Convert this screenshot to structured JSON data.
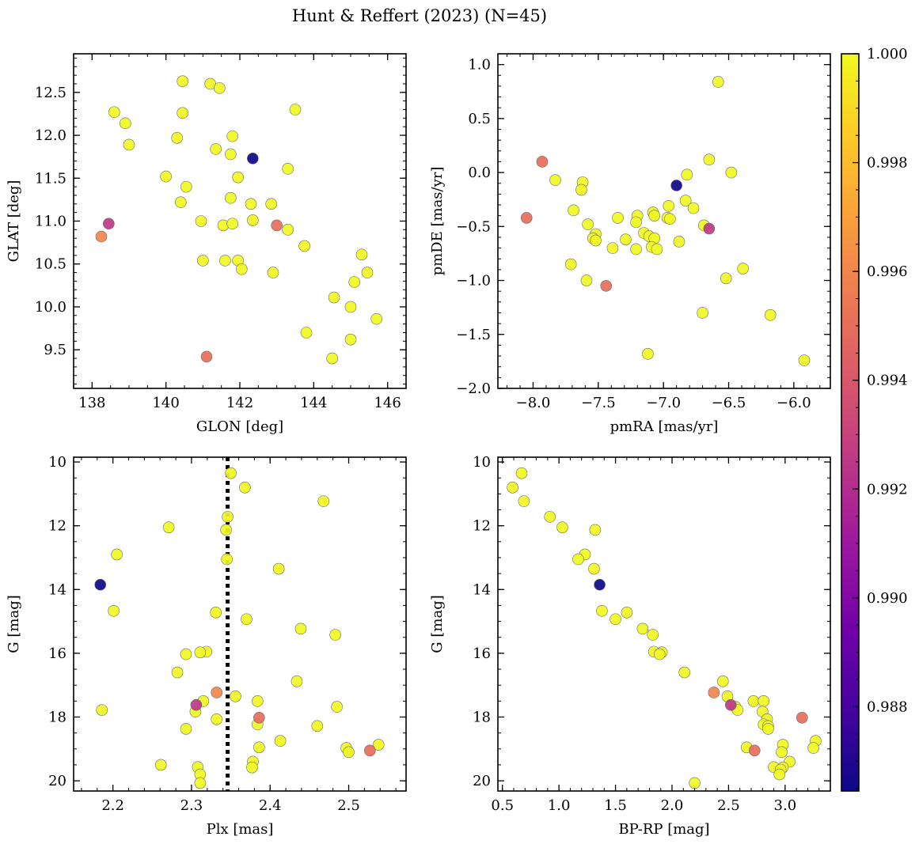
{
  "title": "Hunt & Reffert (2023) (N=45)",
  "colorbar": {
    "colormap": "plasma",
    "vmin": 0.98645,
    "vmax": 1.0,
    "ticks": [
      0.988,
      0.99,
      0.992,
      0.994,
      0.996,
      0.998,
      1.0
    ],
    "tick_labels": [
      "0.988",
      "0.990",
      "0.992",
      "0.994",
      "0.996",
      "0.998",
      "1.000"
    ]
  },
  "chart_data": [
    {
      "type": "scatter",
      "panel": "top-left",
      "xlabel": "GLON [deg]",
      "ylabel": "GLAT [deg]",
      "xlim": [
        137.5,
        146.5
      ],
      "ylim": [
        9.05,
        12.95
      ],
      "xticks": [
        138,
        140,
        142,
        144,
        146
      ],
      "xtick_labels": [
        "138",
        "140",
        "142",
        "144",
        "146"
      ],
      "xminor": 0.5,
      "yticks": [
        9.5,
        10.0,
        10.5,
        11.0,
        11.5,
        12.0,
        12.5
      ],
      "ytick_labels": [
        "9.5",
        "10.0",
        "10.5",
        "11.0",
        "11.5",
        "12.0",
        "12.5"
      ],
      "yminor": 0.1,
      "points": [
        {
          "x": 138.6,
          "y": 12.27,
          "c": 1.0
        },
        {
          "x": 138.9,
          "y": 12.14,
          "c": 1.0
        },
        {
          "x": 139.0,
          "y": 11.89,
          "c": 1.0
        },
        {
          "x": 140.45,
          "y": 12.63,
          "c": 1.0
        },
        {
          "x": 141.2,
          "y": 12.6,
          "c": 1.0
        },
        {
          "x": 141.45,
          "y": 12.55,
          "c": 1.0
        },
        {
          "x": 140.45,
          "y": 12.26,
          "c": 1.0
        },
        {
          "x": 143.5,
          "y": 12.3,
          "c": 1.0
        },
        {
          "x": 140.3,
          "y": 11.97,
          "c": 1.0
        },
        {
          "x": 141.35,
          "y": 11.84,
          "c": 1.0
        },
        {
          "x": 141.8,
          "y": 11.99,
          "c": 1.0
        },
        {
          "x": 141.75,
          "y": 11.78,
          "c": 1.0
        },
        {
          "x": 142.35,
          "y": 11.73,
          "c": 0.98645
        },
        {
          "x": 143.3,
          "y": 11.61,
          "c": 1.0
        },
        {
          "x": 140.0,
          "y": 11.52,
          "c": 1.0
        },
        {
          "x": 141.95,
          "y": 11.51,
          "c": 1.0
        },
        {
          "x": 140.55,
          "y": 11.4,
          "c": 1.0
        },
        {
          "x": 141.75,
          "y": 11.27,
          "c": 1.0
        },
        {
          "x": 140.4,
          "y": 11.22,
          "c": 1.0
        },
        {
          "x": 142.3,
          "y": 11.2,
          "c": 1.0
        },
        {
          "x": 142.85,
          "y": 11.2,
          "c": 1.0
        },
        {
          "x": 140.95,
          "y": 11.0,
          "c": 1.0
        },
        {
          "x": 142.35,
          "y": 11.01,
          "c": 1.0
        },
        {
          "x": 141.55,
          "y": 10.95,
          "c": 1.0
        },
        {
          "x": 141.8,
          "y": 10.97,
          "c": 1.0
        },
        {
          "x": 138.45,
          "y": 10.97,
          "c": 0.9925
        },
        {
          "x": 143.0,
          "y": 10.95,
          "c": 0.995
        },
        {
          "x": 143.3,
          "y": 10.9,
          "c": 1.0
        },
        {
          "x": 138.25,
          "y": 10.82,
          "c": 0.996
        },
        {
          "x": 143.75,
          "y": 10.71,
          "c": 1.0
        },
        {
          "x": 145.3,
          "y": 10.61,
          "c": 1.0
        },
        {
          "x": 141.0,
          "y": 10.54,
          "c": 1.0
        },
        {
          "x": 141.6,
          "y": 10.54,
          "c": 1.0
        },
        {
          "x": 141.95,
          "y": 10.54,
          "c": 1.0
        },
        {
          "x": 142.05,
          "y": 10.44,
          "c": 1.0
        },
        {
          "x": 142.9,
          "y": 10.4,
          "c": 1.0
        },
        {
          "x": 145.45,
          "y": 10.4,
          "c": 1.0
        },
        {
          "x": 145.1,
          "y": 10.29,
          "c": 1.0
        },
        {
          "x": 144.55,
          "y": 10.11,
          "c": 1.0
        },
        {
          "x": 145.0,
          "y": 10.0,
          "c": 1.0
        },
        {
          "x": 145.7,
          "y": 9.86,
          "c": 1.0
        },
        {
          "x": 143.8,
          "y": 9.7,
          "c": 1.0
        },
        {
          "x": 145.0,
          "y": 9.62,
          "c": 1.0
        },
        {
          "x": 141.1,
          "y": 9.42,
          "c": 0.995
        },
        {
          "x": 144.5,
          "y": 9.4,
          "c": 1.0
        }
      ]
    },
    {
      "type": "scatter",
      "panel": "top-right",
      "xlabel": "pmRA [mas/yr]",
      "ylabel": "pmDE [mas/yr]",
      "xlim": [
        -8.27,
        -5.72
      ],
      "ylim": [
        -2.0,
        1.1
      ],
      "xticks": [
        -8.0,
        -7.5,
        -7.0,
        -6.5,
        -6.0
      ],
      "xtick_labels": [
        "−8.0",
        "−7.5",
        "−7.0",
        "−6.5",
        "−6.0"
      ],
      "xminor": 0.1,
      "yticks": [
        -2.0,
        -1.5,
        -1.0,
        -0.5,
        0.0,
        0.5,
        1.0
      ],
      "ytick_labels": [
        "−2.0",
        "−1.5",
        "−1.0",
        "−0.5",
        "0.0",
        "0.5",
        "1.0"
      ],
      "yminor": 0.1,
      "points": [
        {
          "x": -6.58,
          "y": 0.84,
          "c": 1.0
        },
        {
          "x": -6.65,
          "y": 0.12,
          "c": 1.0
        },
        {
          "x": -7.93,
          "y": 0.1,
          "c": 0.995
        },
        {
          "x": -6.48,
          "y": 0.0,
          "c": 1.0
        },
        {
          "x": -6.82,
          "y": -0.02,
          "c": 1.0
        },
        {
          "x": -7.83,
          "y": -0.07,
          "c": 1.0
        },
        {
          "x": -7.62,
          "y": -0.09,
          "c": 1.0
        },
        {
          "x": -6.9,
          "y": -0.12,
          "c": 0.98645
        },
        {
          "x": -7.63,
          "y": -0.16,
          "c": 1.0
        },
        {
          "x": -6.83,
          "y": -0.26,
          "c": 1.0
        },
        {
          "x": -6.96,
          "y": -0.31,
          "c": 1.0
        },
        {
          "x": -6.77,
          "y": -0.33,
          "c": 1.0
        },
        {
          "x": -7.69,
          "y": -0.35,
          "c": 1.0
        },
        {
          "x": -7.08,
          "y": -0.37,
          "c": 1.0
        },
        {
          "x": -7.2,
          "y": -0.4,
          "c": 1.0
        },
        {
          "x": -7.07,
          "y": -0.4,
          "c": 1.0
        },
        {
          "x": -8.05,
          "y": -0.42,
          "c": 0.995
        },
        {
          "x": -7.35,
          "y": -0.42,
          "c": 1.0
        },
        {
          "x": -6.97,
          "y": -0.42,
          "c": 1.0
        },
        {
          "x": -6.95,
          "y": -0.43,
          "c": 1.0
        },
        {
          "x": -7.21,
          "y": -0.46,
          "c": 1.0
        },
        {
          "x": -7.58,
          "y": -0.48,
          "c": 1.0
        },
        {
          "x": -6.69,
          "y": -0.49,
          "c": 1.0
        },
        {
          "x": -6.65,
          "y": -0.52,
          "c": 0.9925
        },
        {
          "x": -7.15,
          "y": -0.56,
          "c": 1.0
        },
        {
          "x": -7.52,
          "y": -0.57,
          "c": 1.0
        },
        {
          "x": -7.11,
          "y": -0.59,
          "c": 1.0
        },
        {
          "x": -7.54,
          "y": -0.61,
          "c": 1.0
        },
        {
          "x": -7.07,
          "y": -0.61,
          "c": 1.0
        },
        {
          "x": -7.29,
          "y": -0.62,
          "c": 1.0
        },
        {
          "x": -7.52,
          "y": -0.63,
          "c": 1.0
        },
        {
          "x": -6.88,
          "y": -0.64,
          "c": 1.0
        },
        {
          "x": -7.09,
          "y": -0.69,
          "c": 1.0
        },
        {
          "x": -7.39,
          "y": -0.7,
          "c": 1.0
        },
        {
          "x": -7.21,
          "y": -0.71,
          "c": 1.0
        },
        {
          "x": -7.05,
          "y": -0.71,
          "c": 1.0
        },
        {
          "x": -7.71,
          "y": -0.85,
          "c": 1.0
        },
        {
          "x": -6.39,
          "y": -0.89,
          "c": 1.0
        },
        {
          "x": -6.52,
          "y": -0.98,
          "c": 1.0
        },
        {
          "x": -7.59,
          "y": -1.0,
          "c": 1.0
        },
        {
          "x": -7.44,
          "y": -1.05,
          "c": 0.995
        },
        {
          "x": -6.7,
          "y": -1.3,
          "c": 1.0
        },
        {
          "x": -6.18,
          "y": -1.32,
          "c": 1.0
        },
        {
          "x": -7.12,
          "y": -1.68,
          "c": 1.0
        },
        {
          "x": -5.92,
          "y": -1.74,
          "c": 1.0
        }
      ]
    },
    {
      "type": "scatter",
      "panel": "bottom-left",
      "xlabel": "Plx [mas]",
      "ylabel": "G [mag]",
      "xlim": [
        2.15,
        2.573
      ],
      "ylim": [
        20.32,
        9.85
      ],
      "y_inverted": true,
      "reference_line": {
        "x": 2.346,
        "style": "dotted"
      },
      "xticks": [
        2.2,
        2.3,
        2.4,
        2.5
      ],
      "xtick_labels": [
        "2.2",
        "2.3",
        "2.4",
        "2.5"
      ],
      "xminor": 0.02,
      "yticks": [
        10,
        12,
        14,
        16,
        18,
        20
      ],
      "ytick_labels": [
        "10",
        "12",
        "14",
        "16",
        "18",
        "20"
      ],
      "yminor": 0.5,
      "points": [
        {
          "x": 2.35,
          "y": 10.35,
          "c": 1.0
        },
        {
          "x": 2.368,
          "y": 10.8,
          "c": 1.0
        },
        {
          "x": 2.468,
          "y": 11.23,
          "c": 1.0
        },
        {
          "x": 2.346,
          "y": 11.72,
          "c": 1.0
        },
        {
          "x": 2.271,
          "y": 12.05,
          "c": 1.0
        },
        {
          "x": 2.344,
          "y": 12.13,
          "c": 1.0
        },
        {
          "x": 2.205,
          "y": 12.9,
          "c": 1.0
        },
        {
          "x": 2.345,
          "y": 13.05,
          "c": 1.0
        },
        {
          "x": 2.411,
          "y": 13.35,
          "c": 1.0
        },
        {
          "x": 2.184,
          "y": 13.85,
          "c": 0.98645
        },
        {
          "x": 2.201,
          "y": 14.67,
          "c": 1.0
        },
        {
          "x": 2.331,
          "y": 14.72,
          "c": 1.0
        },
        {
          "x": 2.37,
          "y": 14.93,
          "c": 1.0
        },
        {
          "x": 2.439,
          "y": 15.23,
          "c": 1.0
        },
        {
          "x": 2.483,
          "y": 15.42,
          "c": 1.0
        },
        {
          "x": 2.319,
          "y": 15.95,
          "c": 1.0
        },
        {
          "x": 2.311,
          "y": 15.97,
          "c": 1.0
        },
        {
          "x": 2.293,
          "y": 16.03,
          "c": 1.0
        },
        {
          "x": 2.282,
          "y": 16.6,
          "c": 1.0
        },
        {
          "x": 2.434,
          "y": 16.88,
          "c": 1.0
        },
        {
          "x": 2.332,
          "y": 17.23,
          "c": 0.996
        },
        {
          "x": 2.356,
          "y": 17.35,
          "c": 1.0
        },
        {
          "x": 2.315,
          "y": 17.5,
          "c": 1.0
        },
        {
          "x": 2.384,
          "y": 17.5,
          "c": 1.0
        },
        {
          "x": 2.306,
          "y": 17.62,
          "c": 0.9925
        },
        {
          "x": 2.485,
          "y": 17.68,
          "c": 1.0
        },
        {
          "x": 2.186,
          "y": 17.78,
          "c": 1.0
        },
        {
          "x": 2.305,
          "y": 17.83,
          "c": 1.0
        },
        {
          "x": 2.386,
          "y": 18.02,
          "c": 0.995
        },
        {
          "x": 2.332,
          "y": 18.07,
          "c": 1.0
        },
        {
          "x": 2.384,
          "y": 18.23,
          "c": 1.0
        },
        {
          "x": 2.46,
          "y": 18.28,
          "c": 1.0
        },
        {
          "x": 2.293,
          "y": 18.37,
          "c": 1.0
        },
        {
          "x": 2.413,
          "y": 18.75,
          "c": 1.0
        },
        {
          "x": 2.538,
          "y": 18.87,
          "c": 1.0
        },
        {
          "x": 2.386,
          "y": 18.95,
          "c": 1.0
        },
        {
          "x": 2.497,
          "y": 18.97,
          "c": 1.0
        },
        {
          "x": 2.527,
          "y": 19.05,
          "c": 0.995
        },
        {
          "x": 2.5,
          "y": 19.1,
          "c": 1.0
        },
        {
          "x": 2.378,
          "y": 19.4,
          "c": 1.0
        },
        {
          "x": 2.261,
          "y": 19.5,
          "c": 1.0
        },
        {
          "x": 2.308,
          "y": 19.57,
          "c": 1.0
        },
        {
          "x": 2.377,
          "y": 19.58,
          "c": 1.0
        },
        {
          "x": 2.311,
          "y": 19.8,
          "c": 1.0
        },
        {
          "x": 2.311,
          "y": 20.07,
          "c": 1.0
        }
      ]
    },
    {
      "type": "scatter",
      "panel": "bottom-right",
      "xlabel": "BP-RP [mag]",
      "ylabel": "G [mag]",
      "xlim": [
        0.46,
        3.4
      ],
      "ylim": [
        20.32,
        9.85
      ],
      "y_inverted": true,
      "xticks": [
        0.5,
        1.0,
        1.5,
        2.0,
        2.5,
        3.0
      ],
      "xtick_labels": [
        "0.5",
        "1.0",
        "1.5",
        "2.0",
        "2.5",
        "3.0"
      ],
      "xminor": 0.1,
      "yticks": [
        10,
        12,
        14,
        16,
        18,
        20
      ],
      "ytick_labels": [
        "10",
        "12",
        "14",
        "16",
        "18",
        "20"
      ],
      "yminor": 0.5,
      "points": [
        {
          "x": 0.67,
          "y": 10.35,
          "c": 1.0
        },
        {
          "x": 0.59,
          "y": 10.8,
          "c": 1.0
        },
        {
          "x": 0.69,
          "y": 11.23,
          "c": 1.0
        },
        {
          "x": 0.92,
          "y": 11.72,
          "c": 1.0
        },
        {
          "x": 1.03,
          "y": 12.05,
          "c": 1.0
        },
        {
          "x": 1.32,
          "y": 12.13,
          "c": 1.0
        },
        {
          "x": 1.23,
          "y": 12.9,
          "c": 1.0
        },
        {
          "x": 1.17,
          "y": 13.05,
          "c": 1.0
        },
        {
          "x": 1.31,
          "y": 13.35,
          "c": 1.0
        },
        {
          "x": 1.36,
          "y": 13.85,
          "c": 0.98645
        },
        {
          "x": 1.38,
          "y": 14.67,
          "c": 1.0
        },
        {
          "x": 1.6,
          "y": 14.72,
          "c": 1.0
        },
        {
          "x": 1.5,
          "y": 14.93,
          "c": 1.0
        },
        {
          "x": 1.74,
          "y": 15.23,
          "c": 1.0
        },
        {
          "x": 1.83,
          "y": 15.42,
          "c": 1.0
        },
        {
          "x": 1.84,
          "y": 15.95,
          "c": 1.0
        },
        {
          "x": 1.91,
          "y": 15.97,
          "c": 1.0
        },
        {
          "x": 1.89,
          "y": 16.03,
          "c": 1.0
        },
        {
          "x": 2.11,
          "y": 16.6,
          "c": 1.0
        },
        {
          "x": 2.45,
          "y": 16.88,
          "c": 1.0
        },
        {
          "x": 2.37,
          "y": 17.23,
          "c": 0.996
        },
        {
          "x": 2.49,
          "y": 17.35,
          "c": 1.0
        },
        {
          "x": 2.72,
          "y": 17.5,
          "c": 1.0
        },
        {
          "x": 2.81,
          "y": 17.5,
          "c": 1.0
        },
        {
          "x": 2.52,
          "y": 17.62,
          "c": 0.9925
        },
        {
          "x": 2.56,
          "y": 17.68,
          "c": 1.0
        },
        {
          "x": 2.58,
          "y": 17.78,
          "c": 1.0
        },
        {
          "x": 2.8,
          "y": 17.83,
          "c": 1.0
        },
        {
          "x": 3.15,
          "y": 18.02,
          "c": 0.995
        },
        {
          "x": 2.84,
          "y": 18.07,
          "c": 1.0
        },
        {
          "x": 2.81,
          "y": 18.23,
          "c": 1.0
        },
        {
          "x": 2.85,
          "y": 18.28,
          "c": 1.0
        },
        {
          "x": 2.85,
          "y": 18.37,
          "c": 1.0
        },
        {
          "x": 3.27,
          "y": 18.75,
          "c": 1.0
        },
        {
          "x": 2.98,
          "y": 18.87,
          "c": 1.0
        },
        {
          "x": 2.66,
          "y": 18.95,
          "c": 1.0
        },
        {
          "x": 3.25,
          "y": 18.97,
          "c": 1.0
        },
        {
          "x": 2.73,
          "y": 19.05,
          "c": 0.995
        },
        {
          "x": 2.97,
          "y": 19.1,
          "c": 1.0
        },
        {
          "x": 3.04,
          "y": 19.4,
          "c": 1.0
        },
        {
          "x": 2.9,
          "y": 19.57,
          "c": 1.0
        },
        {
          "x": 2.98,
          "y": 19.58,
          "c": 1.0
        },
        {
          "x": 2.96,
          "y": 19.65,
          "c": 1.0
        },
        {
          "x": 2.95,
          "y": 19.8,
          "c": 1.0
        },
        {
          "x": 2.2,
          "y": 20.07,
          "c": 1.0
        }
      ]
    }
  ]
}
